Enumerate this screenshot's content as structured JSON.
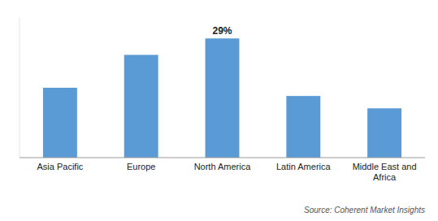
{
  "chart_data": {
    "type": "bar",
    "categories": [
      "Asia Pacific",
      "Europe",
      "North America",
      "Latin America",
      "Middle East and\nAfrica"
    ],
    "values": [
      17,
      25,
      29,
      15,
      12
    ],
    "color": "#5B9BD5",
    "ylim": [
      0,
      34
    ],
    "grid": false,
    "tick_labels": "x",
    "annotations": [
      {
        "text": "29%",
        "category": "North America"
      }
    ],
    "source": "Source: Coherent Market Insights"
  }
}
